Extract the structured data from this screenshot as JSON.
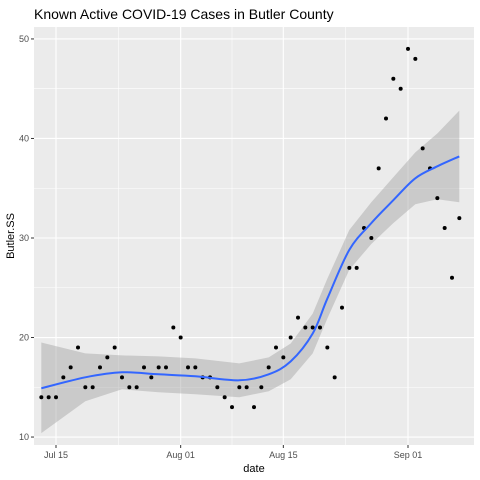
{
  "chart_data": {
    "type": "scatter",
    "title": "Known Active COVID-19 Cases in Butler County",
    "xlabel": "date",
    "ylabel": "Butler.SS",
    "x_ticks": [
      {
        "date": "2020-07-15",
        "label": "Jul 15"
      },
      {
        "date": "2020-08-01",
        "label": "Aug 01"
      },
      {
        "date": "2020-08-15",
        "label": "Aug 15"
      },
      {
        "date": "2020-09-01",
        "label": "Sep 01"
      }
    ],
    "y_ticks": [
      10,
      20,
      30,
      40,
      50
    ],
    "xlim": [
      "2020-07-12",
      "2020-09-10"
    ],
    "ylim": [
      9.2,
      51.2
    ],
    "grid": true,
    "colors": {
      "panel_background": "#ebebeb",
      "grid": "#ffffff",
      "points": "#000000",
      "smooth_line": "#3366ff",
      "confidence_band": "#999999"
    },
    "points": [
      {
        "x": "2020-07-13",
        "y": 14
      },
      {
        "x": "2020-07-14",
        "y": 14
      },
      {
        "x": "2020-07-15",
        "y": 14
      },
      {
        "x": "2020-07-16",
        "y": 16
      },
      {
        "x": "2020-07-17",
        "y": 17
      },
      {
        "x": "2020-07-18",
        "y": 19
      },
      {
        "x": "2020-07-19",
        "y": 15
      },
      {
        "x": "2020-07-20",
        "y": 15
      },
      {
        "x": "2020-07-21",
        "y": 17
      },
      {
        "x": "2020-07-22",
        "y": 18
      },
      {
        "x": "2020-07-23",
        "y": 19
      },
      {
        "x": "2020-07-24",
        "y": 16
      },
      {
        "x": "2020-07-25",
        "y": 15
      },
      {
        "x": "2020-07-26",
        "y": 15
      },
      {
        "x": "2020-07-27",
        "y": 17
      },
      {
        "x": "2020-07-28",
        "y": 16
      },
      {
        "x": "2020-07-29",
        "y": 17
      },
      {
        "x": "2020-07-30",
        "y": 17
      },
      {
        "x": "2020-07-31",
        "y": 21
      },
      {
        "x": "2020-08-01",
        "y": 20
      },
      {
        "x": "2020-08-02",
        "y": 17
      },
      {
        "x": "2020-08-03",
        "y": 17
      },
      {
        "x": "2020-08-04",
        "y": 16
      },
      {
        "x": "2020-08-05",
        "y": 16
      },
      {
        "x": "2020-08-06",
        "y": 15
      },
      {
        "x": "2020-08-07",
        "y": 14
      },
      {
        "x": "2020-08-08",
        "y": 13
      },
      {
        "x": "2020-08-09",
        "y": 15
      },
      {
        "x": "2020-08-10",
        "y": 15
      },
      {
        "x": "2020-08-11",
        "y": 13
      },
      {
        "x": "2020-08-12",
        "y": 15
      },
      {
        "x": "2020-08-13",
        "y": 17
      },
      {
        "x": "2020-08-14",
        "y": 19
      },
      {
        "x": "2020-08-15",
        "y": 18
      },
      {
        "x": "2020-08-16",
        "y": 20
      },
      {
        "x": "2020-08-17",
        "y": 22
      },
      {
        "x": "2020-08-18",
        "y": 21
      },
      {
        "x": "2020-08-19",
        "y": 21
      },
      {
        "x": "2020-08-20",
        "y": 21
      },
      {
        "x": "2020-08-21",
        "y": 19
      },
      {
        "x": "2020-08-22",
        "y": 16
      },
      {
        "x": "2020-08-23",
        "y": 23
      },
      {
        "x": "2020-08-24",
        "y": 27
      },
      {
        "x": "2020-08-25",
        "y": 27
      },
      {
        "x": "2020-08-26",
        "y": 31
      },
      {
        "x": "2020-08-27",
        "y": 30
      },
      {
        "x": "2020-08-28",
        "y": 37
      },
      {
        "x": "2020-08-29",
        "y": 42
      },
      {
        "x": "2020-08-30",
        "y": 46
      },
      {
        "x": "2020-08-31",
        "y": 45
      },
      {
        "x": "2020-09-01",
        "y": 49
      },
      {
        "x": "2020-09-02",
        "y": 48
      },
      {
        "x": "2020-09-03",
        "y": 39
      },
      {
        "x": "2020-09-04",
        "y": 37
      },
      {
        "x": "2020-09-05",
        "y": 34
      },
      {
        "x": "2020-09-06",
        "y": 31
      },
      {
        "x": "2020-09-07",
        "y": 26
      },
      {
        "x": "2020-09-08",
        "y": 32
      }
    ],
    "smooth": [
      {
        "x": "2020-07-13",
        "y": 14.9,
        "lower": 10.4,
        "upper": 19.5
      },
      {
        "x": "2020-07-19",
        "y": 16.0,
        "lower": 13.6,
        "upper": 18.4
      },
      {
        "x": "2020-07-24",
        "y": 16.5,
        "lower": 14.8,
        "upper": 18.2
      },
      {
        "x": "2020-07-29",
        "y": 16.3,
        "lower": 14.5,
        "upper": 18.1
      },
      {
        "x": "2020-08-03",
        "y": 16.1,
        "lower": 14.3,
        "upper": 17.9
      },
      {
        "x": "2020-08-09",
        "y": 15.7,
        "lower": 14.0,
        "upper": 17.4
      },
      {
        "x": "2020-08-13",
        "y": 16.3,
        "lower": 14.6,
        "upper": 18.0
      },
      {
        "x": "2020-08-16",
        "y": 17.6,
        "lower": 15.8,
        "upper": 19.4
      },
      {
        "x": "2020-08-19",
        "y": 20.4,
        "lower": 18.4,
        "upper": 22.4
      },
      {
        "x": "2020-08-21",
        "y": 23.9,
        "lower": 21.9,
        "upper": 25.9
      },
      {
        "x": "2020-08-24",
        "y": 28.8,
        "lower": 26.8,
        "upper": 30.8
      },
      {
        "x": "2020-08-27",
        "y": 31.5,
        "lower": 29.4,
        "upper": 33.6
      },
      {
        "x": "2020-08-30",
        "y": 33.8,
        "lower": 31.5,
        "upper": 36.1
      },
      {
        "x": "2020-09-02",
        "y": 36.0,
        "lower": 33.4,
        "upper": 38.6
      },
      {
        "x": "2020-09-05",
        "y": 37.2,
        "lower": 33.9,
        "upper": 40.5
      },
      {
        "x": "2020-09-08",
        "y": 38.2,
        "lower": 33.6,
        "upper": 42.8
      }
    ]
  }
}
